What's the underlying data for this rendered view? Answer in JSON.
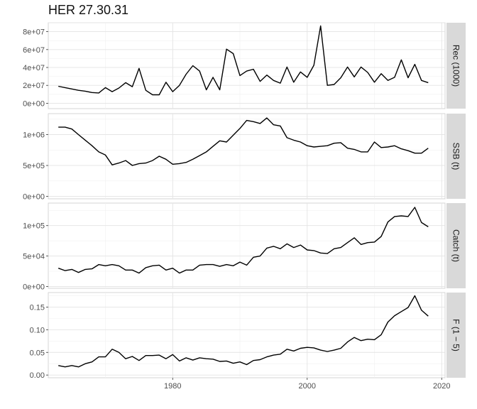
{
  "title": "HER 27.30.31",
  "chart_data": {
    "type": "line",
    "title": "HER 27.30.31",
    "xlabel": "",
    "x_ticks": [
      1980,
      2000,
      2020
    ],
    "xlim": [
      1961.5,
      2020.5
    ],
    "grid": true,
    "line_color": "#000000",
    "panels": [
      {
        "label": "Rec (1000)",
        "ylim": [
          -6000000,
          90000000
        ],
        "y_ticks": [
          0,
          20000000,
          40000000,
          60000000,
          80000000
        ],
        "y_tick_labels": [
          "0e+00",
          "2e+07",
          "4e+07",
          "6e+07",
          "8e+07"
        ],
        "x": [
          1963,
          1964,
          1965,
          1966,
          1967,
          1968,
          1969,
          1970,
          1971,
          1972,
          1973,
          1974,
          1975,
          1976,
          1977,
          1978,
          1979,
          1980,
          1981,
          1982,
          1983,
          1984,
          1985,
          1986,
          1987,
          1988,
          1989,
          1990,
          1991,
          1992,
          1993,
          1994,
          1995,
          1996,
          1997,
          1998,
          1999,
          2000,
          2001,
          2002,
          2003,
          2004,
          2005,
          2006,
          2007,
          2008,
          2009,
          2010,
          2011,
          2012,
          2013,
          2014,
          2015,
          2016,
          2017,
          2018
        ],
        "y": [
          19000000,
          17500000,
          16000000,
          14500000,
          13500000,
          12000000,
          11500000,
          17500000,
          13000000,
          17000000,
          23000000,
          18500000,
          39000000,
          14500000,
          9500000,
          9500000,
          23500000,
          13000000,
          20000000,
          32500000,
          42000000,
          36000000,
          15000000,
          29000000,
          15000000,
          60500000,
          55500000,
          31000000,
          36000000,
          38000000,
          24500000,
          31500000,
          25500000,
          22500000,
          40500000,
          23500000,
          35000000,
          29000000,
          42500000,
          86500000,
          20000000,
          21000000,
          28500000,
          40500000,
          29500000,
          40500000,
          34500000,
          23500000,
          33000000,
          25500000,
          29000000,
          48500000,
          28500000,
          43500000,
          25500000,
          23000000
        ]
      },
      {
        "label": "SSB (t)",
        "ylim": [
          -40000,
          1340000
        ],
        "y_ticks": [
          0,
          500000,
          1000000
        ],
        "y_tick_labels": [
          "0e+00",
          "5e+05",
          "1e+06"
        ],
        "x": [
          1963,
          1964,
          1965,
          1966,
          1967,
          1968,
          1969,
          1970,
          1971,
          1972,
          1973,
          1974,
          1975,
          1976,
          1977,
          1978,
          1979,
          1980,
          1981,
          1982,
          1983,
          1984,
          1985,
          1986,
          1987,
          1988,
          1989,
          1990,
          1991,
          1992,
          1993,
          1994,
          1995,
          1996,
          1997,
          1998,
          1999,
          2000,
          2001,
          2002,
          2003,
          2004,
          2005,
          2006,
          2007,
          2008,
          2009,
          2010,
          2011,
          2012,
          2013,
          2014,
          2015,
          2016,
          2017,
          2018
        ],
        "y": [
          1120000,
          1120000,
          1090000,
          1000000,
          910000,
          820000,
          720000,
          670000,
          510000,
          540000,
          580000,
          500000,
          530000,
          540000,
          580000,
          650000,
          600000,
          520000,
          530000,
          550000,
          600000,
          660000,
          720000,
          810000,
          900000,
          880000,
          990000,
          1100000,
          1230000,
          1210000,
          1180000,
          1270000,
          1160000,
          1140000,
          950000,
          910000,
          880000,
          820000,
          800000,
          810000,
          820000,
          860000,
          870000,
          780000,
          760000,
          720000,
          720000,
          880000,
          790000,
          800000,
          820000,
          770000,
          740000,
          700000,
          700000,
          780000
        ]
      },
      {
        "label": "Catch (t)",
        "ylim": [
          -3000,
          137000
        ],
        "y_ticks": [
          0,
          50000,
          100000
        ],
        "y_tick_labels": [
          "0e+00",
          "5e+04",
          "1e+05"
        ],
        "x": [
          1963,
          1964,
          1965,
          1966,
          1967,
          1968,
          1969,
          1970,
          1971,
          1972,
          1973,
          1974,
          1975,
          1976,
          1977,
          1978,
          1979,
          1980,
          1981,
          1982,
          1983,
          1984,
          1985,
          1986,
          1987,
          1988,
          1989,
          1990,
          1991,
          1992,
          1993,
          1994,
          1995,
          1996,
          1997,
          1998,
          1999,
          2000,
          2001,
          2002,
          2003,
          2004,
          2005,
          2006,
          2007,
          2008,
          2009,
          2010,
          2011,
          2012,
          2013,
          2014,
          2015,
          2016,
          2017,
          2018
        ],
        "y": [
          30000,
          26000,
          28000,
          23000,
          28000,
          29000,
          36000,
          34000,
          36000,
          34000,
          27000,
          27000,
          22000,
          31000,
          34000,
          35000,
          27000,
          30000,
          22000,
          27000,
          27000,
          35000,
          36000,
          36000,
          33000,
          36000,
          34000,
          40000,
          35000,
          48000,
          50000,
          63000,
          66000,
          62000,
          70000,
          64000,
          68000,
          60000,
          59000,
          55000,
          54000,
          62000,
          64000,
          72000,
          80000,
          69000,
          72000,
          73000,
          82000,
          106000,
          115000,
          116000,
          115000,
          130000,
          105000,
          98000
        ]
      },
      {
        "label": "F (1 − 5)",
        "ylim": [
          -0.006,
          0.182
        ],
        "y_ticks": [
          0,
          0.05,
          0.1,
          0.15
        ],
        "y_tick_labels": [
          "0.00",
          "0.05",
          "0.10",
          "0.15"
        ],
        "x": [
          1963,
          1964,
          1965,
          1966,
          1967,
          1968,
          1969,
          1970,
          1971,
          1972,
          1973,
          1974,
          1975,
          1976,
          1977,
          1978,
          1979,
          1980,
          1981,
          1982,
          1983,
          1984,
          1985,
          1986,
          1987,
          1988,
          1989,
          1990,
          1991,
          1992,
          1993,
          1994,
          1995,
          1996,
          1997,
          1998,
          1999,
          2000,
          2001,
          2002,
          2003,
          2004,
          2005,
          2006,
          2007,
          2008,
          2009,
          2010,
          2011,
          2012,
          2013,
          2014,
          2015,
          2016,
          2017,
          2018
        ],
        "y": [
          0.021,
          0.018,
          0.021,
          0.018,
          0.025,
          0.029,
          0.04,
          0.04,
          0.057,
          0.05,
          0.036,
          0.041,
          0.032,
          0.043,
          0.043,
          0.044,
          0.036,
          0.045,
          0.031,
          0.038,
          0.033,
          0.038,
          0.036,
          0.035,
          0.03,
          0.031,
          0.026,
          0.029,
          0.023,
          0.032,
          0.034,
          0.04,
          0.044,
          0.046,
          0.057,
          0.053,
          0.059,
          0.061,
          0.06,
          0.055,
          0.052,
          0.055,
          0.059,
          0.073,
          0.083,
          0.076,
          0.079,
          0.078,
          0.089,
          0.117,
          0.131,
          0.14,
          0.149,
          0.175,
          0.143,
          0.13
        ]
      }
    ]
  }
}
